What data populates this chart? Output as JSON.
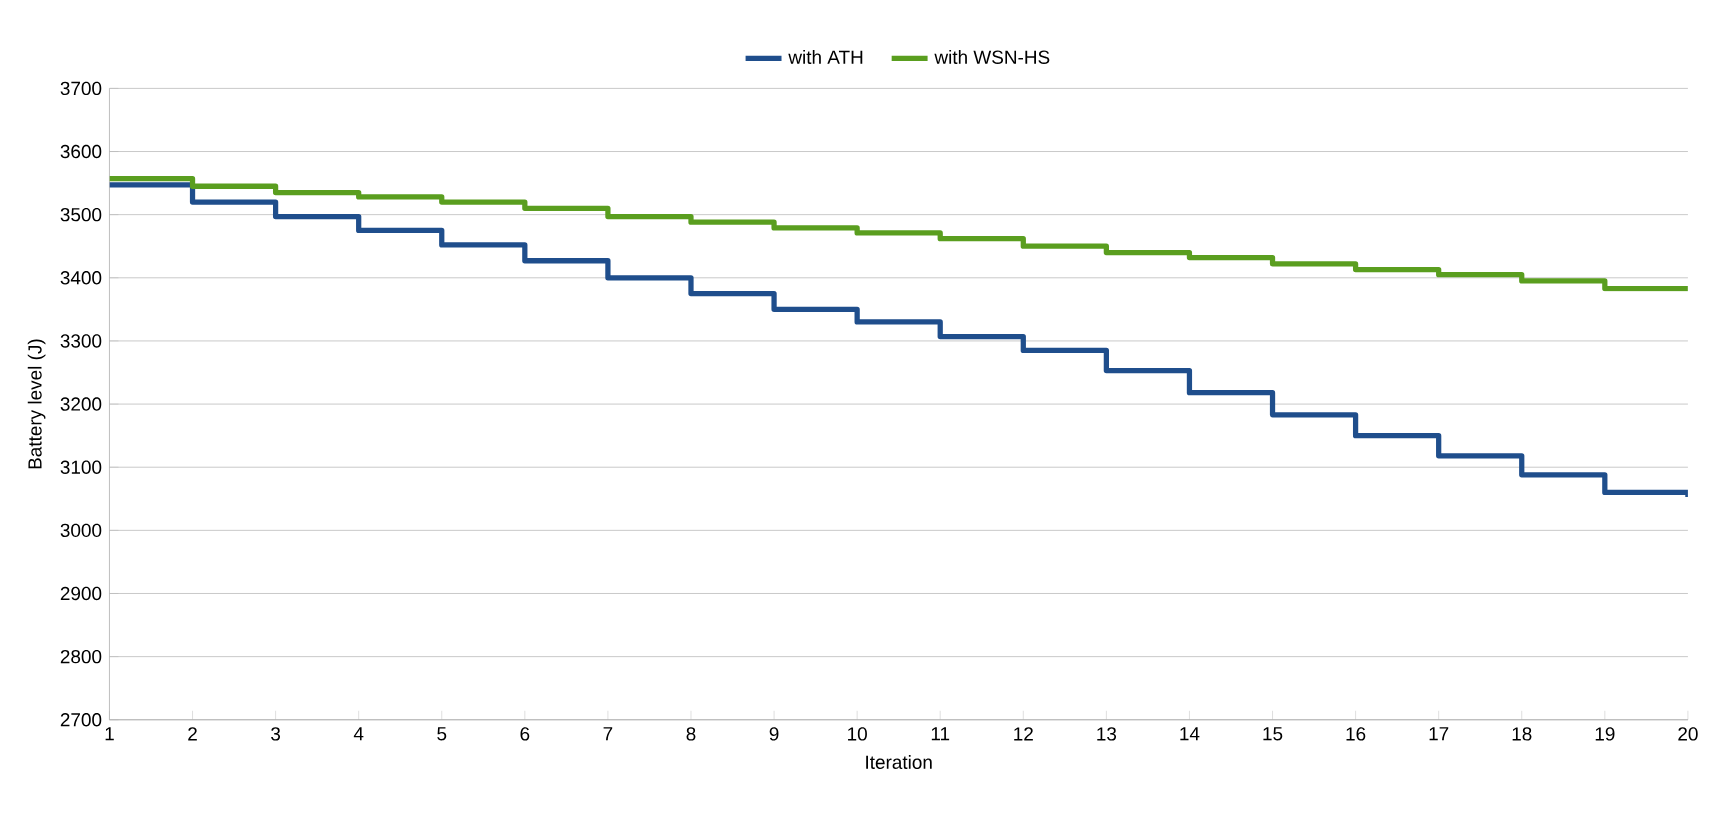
{
  "chart_data": {
    "type": "step",
    "xlabel": "Iteration",
    "ylabel": "Battery level (J)",
    "x": [
      1,
      2,
      3,
      4,
      5,
      6,
      7,
      8,
      9,
      10,
      11,
      12,
      13,
      14,
      15,
      16,
      17,
      18,
      19,
      20
    ],
    "series": [
      {
        "name": "with ATH",
        "color": "#1f4e8c",
        "values": [
          3547,
          3520,
          3497,
          3475,
          3452,
          3427,
          3400,
          3375,
          3350,
          3330,
          3307,
          3285,
          3253,
          3218,
          3183,
          3150,
          3118,
          3088,
          3060,
          3053
        ]
      },
      {
        "name": "with WSN-HS",
        "color": "#5a9e1f",
        "values": [
          3557,
          3545,
          3535,
          3528,
          3520,
          3510,
          3497,
          3488,
          3479,
          3471,
          3462,
          3450,
          3440,
          3432,
          3422,
          3413,
          3405,
          3395,
          3383,
          3383
        ]
      }
    ],
    "xlim": [
      1,
      20
    ],
    "xticks": [
      1,
      2,
      3,
      4,
      5,
      6,
      7,
      8,
      9,
      10,
      11,
      12,
      13,
      14,
      15,
      16,
      17,
      18,
      19,
      20
    ],
    "ylim": [
      2700,
      3700
    ],
    "yticks": [
      2700,
      2800,
      2900,
      3000,
      3100,
      3200,
      3300,
      3400,
      3500,
      3600,
      3700
    ],
    "grid": "y",
    "legend": "top",
    "marker": "none",
    "line_style": "solid"
  }
}
